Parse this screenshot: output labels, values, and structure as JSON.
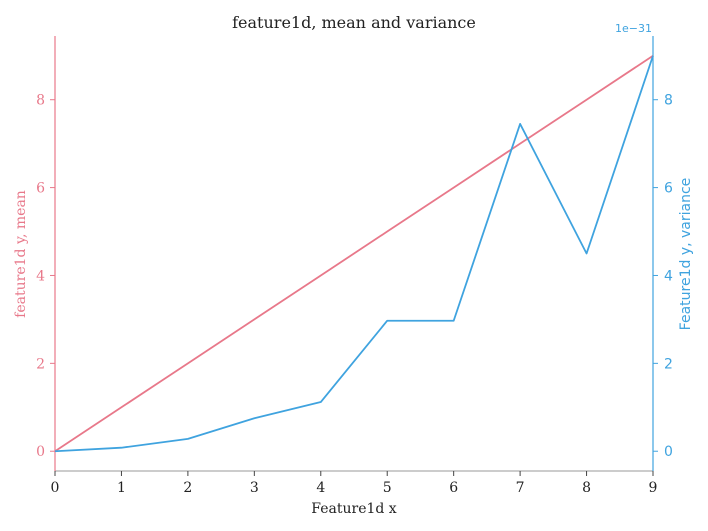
{
  "chart_data": {
    "type": "line",
    "title": "feature1d, mean and variance",
    "xlabel": "Feature1d x",
    "x": [
      0,
      1,
      2,
      3,
      4,
      5,
      6,
      7,
      8,
      9
    ],
    "xticks": [
      "0",
      "1",
      "2",
      "3",
      "4",
      "5",
      "6",
      "7",
      "8",
      "9"
    ],
    "xlim": [
      0,
      9
    ],
    "colors": {
      "left": "#e8788a",
      "right": "#3fa3df",
      "axis": "#999999",
      "text": "#222222"
    },
    "left_axis": {
      "label": "feature1d y, mean",
      "ylim": [
        -0.45,
        9.45
      ],
      "ticks": [
        0,
        2,
        4,
        6,
        8
      ],
      "tick_labels": [
        "0",
        "2",
        "4",
        "6",
        "8"
      ]
    },
    "right_axis": {
      "label": "Feature1d y, variance",
      "offset_text": "1e−31",
      "ylim": [
        -0.45,
        9.45
      ],
      "ticks": [
        0,
        2,
        4,
        6,
        8
      ],
      "tick_labels": [
        "0",
        "2",
        "4",
        "6",
        "8"
      ]
    },
    "series": [
      {
        "axis": "left",
        "color": "#e8788a",
        "values": [
          0,
          1,
          2,
          3,
          4,
          5,
          6,
          7,
          8,
          9
        ]
      },
      {
        "axis": "right",
        "color": "#3fa3df",
        "values": [
          0,
          0.08,
          0.28,
          0.75,
          1.12,
          2.97,
          2.97,
          7.45,
          4.5,
          9.0
        ]
      }
    ]
  }
}
